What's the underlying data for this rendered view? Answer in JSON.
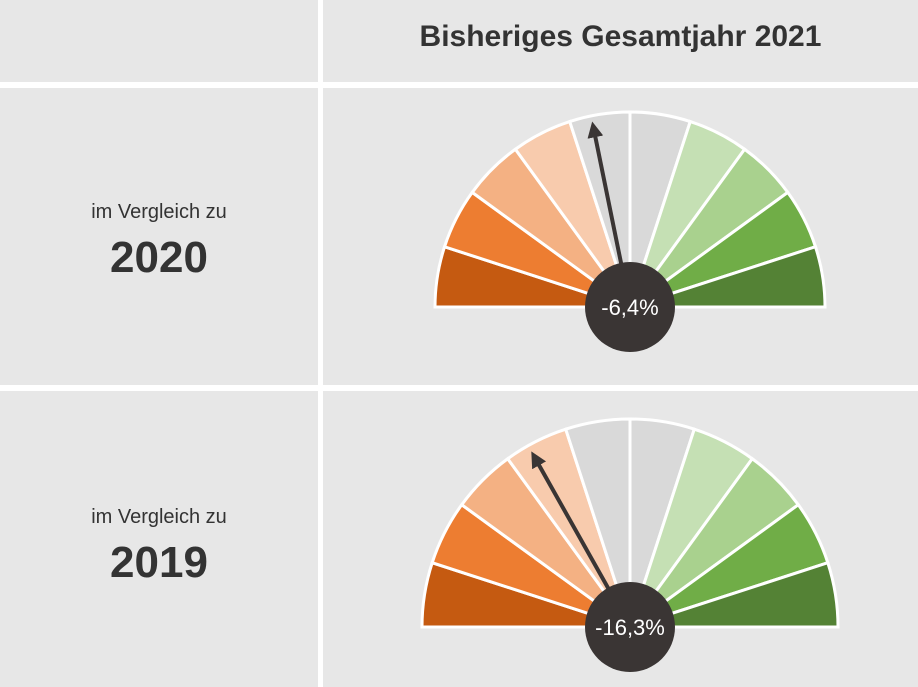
{
  "header": {
    "title": "Bisheriges Gesamtjahr 2021"
  },
  "chart_data": [
    {
      "type": "gauge",
      "label": "im Vergleich zu",
      "category": "2020",
      "value": -6.4,
      "value_label": "-6,4%",
      "range": [
        -50,
        50
      ],
      "colors": [
        "#c55a11",
        "#ed7d31",
        "#f4b183",
        "#f8cbad",
        "#d9d9d9",
        "#d9d9d9",
        "#c5e0b4",
        "#a9d18e",
        "#70ad47",
        "#548235"
      ]
    },
    {
      "type": "gauge",
      "label": "im Vergleich zu",
      "category": "2019",
      "value": -16.3,
      "value_label": "-16,3%",
      "range": [
        -50,
        50
      ],
      "colors": [
        "#c55a11",
        "#ed7d31",
        "#f4b183",
        "#f8cbad",
        "#d9d9d9",
        "#d9d9d9",
        "#c5e0b4",
        "#a9d18e",
        "#70ad47",
        "#548235"
      ]
    }
  ]
}
